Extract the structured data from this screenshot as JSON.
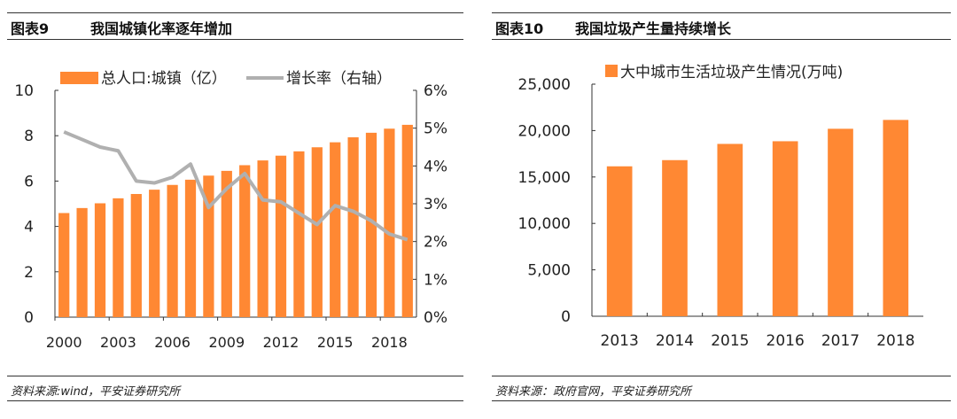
{
  "left": {
    "figure_label": "图表9",
    "title": "我国城镇化率逐年增加",
    "source": "资料来源:wind，平安证券研究所"
  },
  "right": {
    "figure_label": "图表10",
    "title": "我国垃圾产生量持续增长",
    "source": "资料来源：政府官网，平安证券研究所"
  },
  "colors": {
    "bar": "#FF8833",
    "line": "#B0B0B0"
  },
  "chart_data": [
    {
      "type": "bar+line",
      "categories": [
        "2000",
        "2001",
        "2002",
        "2003",
        "2004",
        "2005",
        "2006",
        "2007",
        "2008",
        "2009",
        "2010",
        "2011",
        "2012",
        "2013",
        "2014",
        "2015",
        "2016",
        "2017",
        "2018",
        "2019"
      ],
      "xtick_labels": [
        "2000",
        "2003",
        "2006",
        "2009",
        "2012",
        "2015",
        "2018"
      ],
      "series": [
        {
          "name": "总人口:城镇（亿）",
          "type": "bar",
          "axis": "left",
          "values": [
            4.59,
            4.81,
            5.02,
            5.24,
            5.43,
            5.62,
            5.83,
            6.06,
            6.24,
            6.45,
            6.7,
            6.91,
            7.12,
            7.31,
            7.49,
            7.71,
            7.93,
            8.13,
            8.31,
            8.48
          ]
        },
        {
          "name": "增长率（右轴）",
          "type": "line",
          "axis": "right",
          "values": [
            4.9,
            4.7,
            4.5,
            4.4,
            3.6,
            3.55,
            3.7,
            4.05,
            2.9,
            3.4,
            3.8,
            3.1,
            3.05,
            2.75,
            2.45,
            2.95,
            2.8,
            2.55,
            2.2,
            2.05
          ]
        }
      ],
      "ylim": [
        0,
        10
      ],
      "yticks": [
        "0",
        "2",
        "4",
        "6",
        "8",
        "10"
      ],
      "y2lim": [
        0,
        6
      ],
      "y2ticks": [
        "0%",
        "1%",
        "2%",
        "3%",
        "4%",
        "5%",
        "6%"
      ],
      "legend": "top",
      "grid": false
    },
    {
      "type": "bar",
      "categories": [
        "2013",
        "2014",
        "2015",
        "2016",
        "2017",
        "2018"
      ],
      "series": [
        {
          "name": "大中城市生活垃圾产生情况(万吨)",
          "values": [
            16149,
            16816,
            18564,
            18851,
            20194,
            21147
          ]
        }
      ],
      "ylim": [
        0,
        25000
      ],
      "yticks": [
        "0",
        "5,000",
        "10,000",
        "15,000",
        "20,000",
        "25,000"
      ],
      "legend": "top",
      "grid": false
    }
  ]
}
